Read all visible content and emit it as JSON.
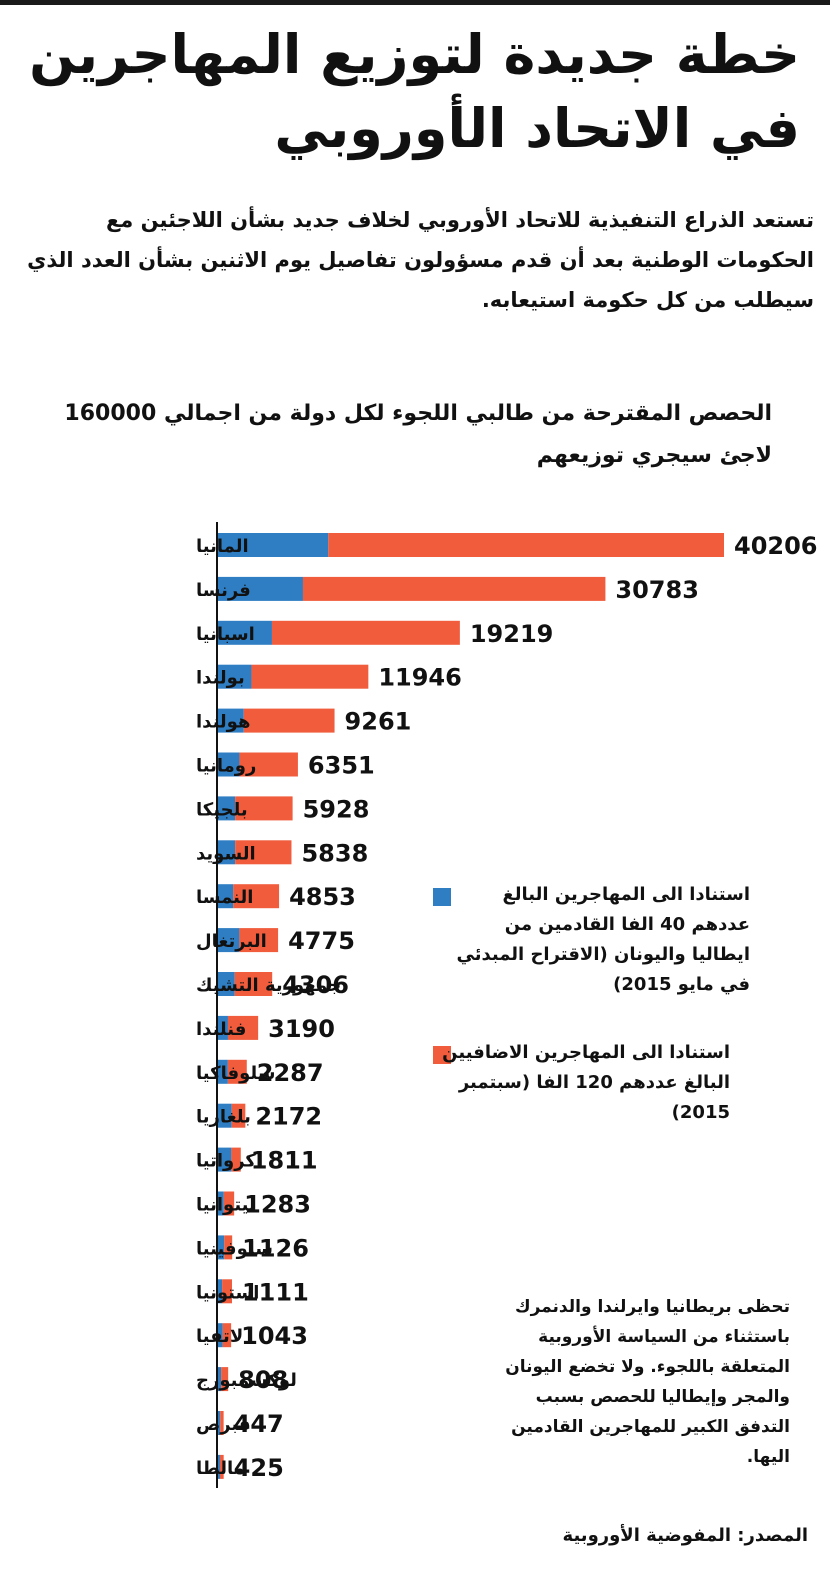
{
  "header": {
    "title_line1": "خطة جديدة لتوزيع المهاجرين",
    "title_line2": "في الاتحاد الأوروبي"
  },
  "intro": "تستعد الذراع التنفيذية للاتحاد الأوروبي لخلاف جديد بشأن اللاجئين مع الحكومات الوطنية بعد أن قدم مسؤولون تفاصيل يوم الاثنين بشأن العدد الذي سيطلب من كل حكومة استيعابه.",
  "legend": [
    {
      "text": "استنادا الى المهاجرين البالغ عددهم 40 الفا القادمين من ايطاليا واليونان (الاقتراح المبدئي في مايو 2015)"
    },
    {
      "text": "استنادا الى المهاجرين الاضافيين البالغ عددهم 120 الفا (سبتمبر 2015)"
    }
  ],
  "note": "تحظى بريطانيا وايرلندا والدنمرك باستثناء من السياسة الأوروبية المتعلقة باللجوء. ولا تخضع اليونان والمجر وإيطاليا للحصص بسبب التدفق الكبير للمهاجرين القادمين اليها.",
  "source": "المصدر: المفوضية الأوروبية",
  "colors": {
    "series1": "#2f7ec3",
    "series2": "#f05c3c",
    "axis": "#111111"
  },
  "chart_data": {
    "type": "bar",
    "orientation": "horizontal",
    "stacked": true,
    "title": "الحصص المقترحة من طالبي اللجوء لكل دولة من اجمالي 160000 لاجئ سيجري توزيعهم",
    "categories": [
      "المانيا",
      "فرنسا",
      "اسبانيا",
      "بولندا",
      "هولندا",
      "رومانيا",
      "بلجيكا",
      "السويد",
      "النمسا",
      "البرتغال",
      "جمهورية التشيك",
      "فنلندا",
      "سلوفاكيا",
      "بلغاريا",
      "كرواتيا",
      "ليتوانيا",
      "سلوفينيا",
      "استونيا",
      "لاتفيا",
      "لوكسمبورج",
      "قبرص",
      "مالطا"
    ],
    "totals": [
      40206,
      30783,
      19219,
      11946,
      9261,
      6351,
      5928,
      5838,
      4853,
      4775,
      4306,
      3190,
      2287,
      2172,
      1811,
      1283,
      1126,
      1111,
      1043,
      808,
      447,
      425
    ],
    "series": [
      {
        "name": "استنادا الى المهاجرين البالغ عددهم 40 الفا القادمين من ايطاليا واليونان (الاقتراح المبدئي في مايو 2015)",
        "values": [
          8763,
          6752,
          4288,
          2659,
          2047,
          1705,
          1364,
          1364,
          1213,
          1701,
          1328,
          792,
          785,
          1090,
          1064,
          461,
          495,
          326,
          376,
          248,
          173,
          133
        ]
      },
      {
        "name": "استنادا الى المهاجرين الاضافيين البالغ عددهم 120 الفا (سبتمبر 2015)",
        "values": [
          31443,
          24031,
          14931,
          9287,
          7214,
          4646,
          4564,
          4474,
          3640,
          3074,
          2978,
          2398,
          1502,
          1082,
          747,
          822,
          631,
          785,
          667,
          560,
          274,
          292
        ]
      }
    ],
    "xlim": [
      0,
      40206
    ]
  }
}
